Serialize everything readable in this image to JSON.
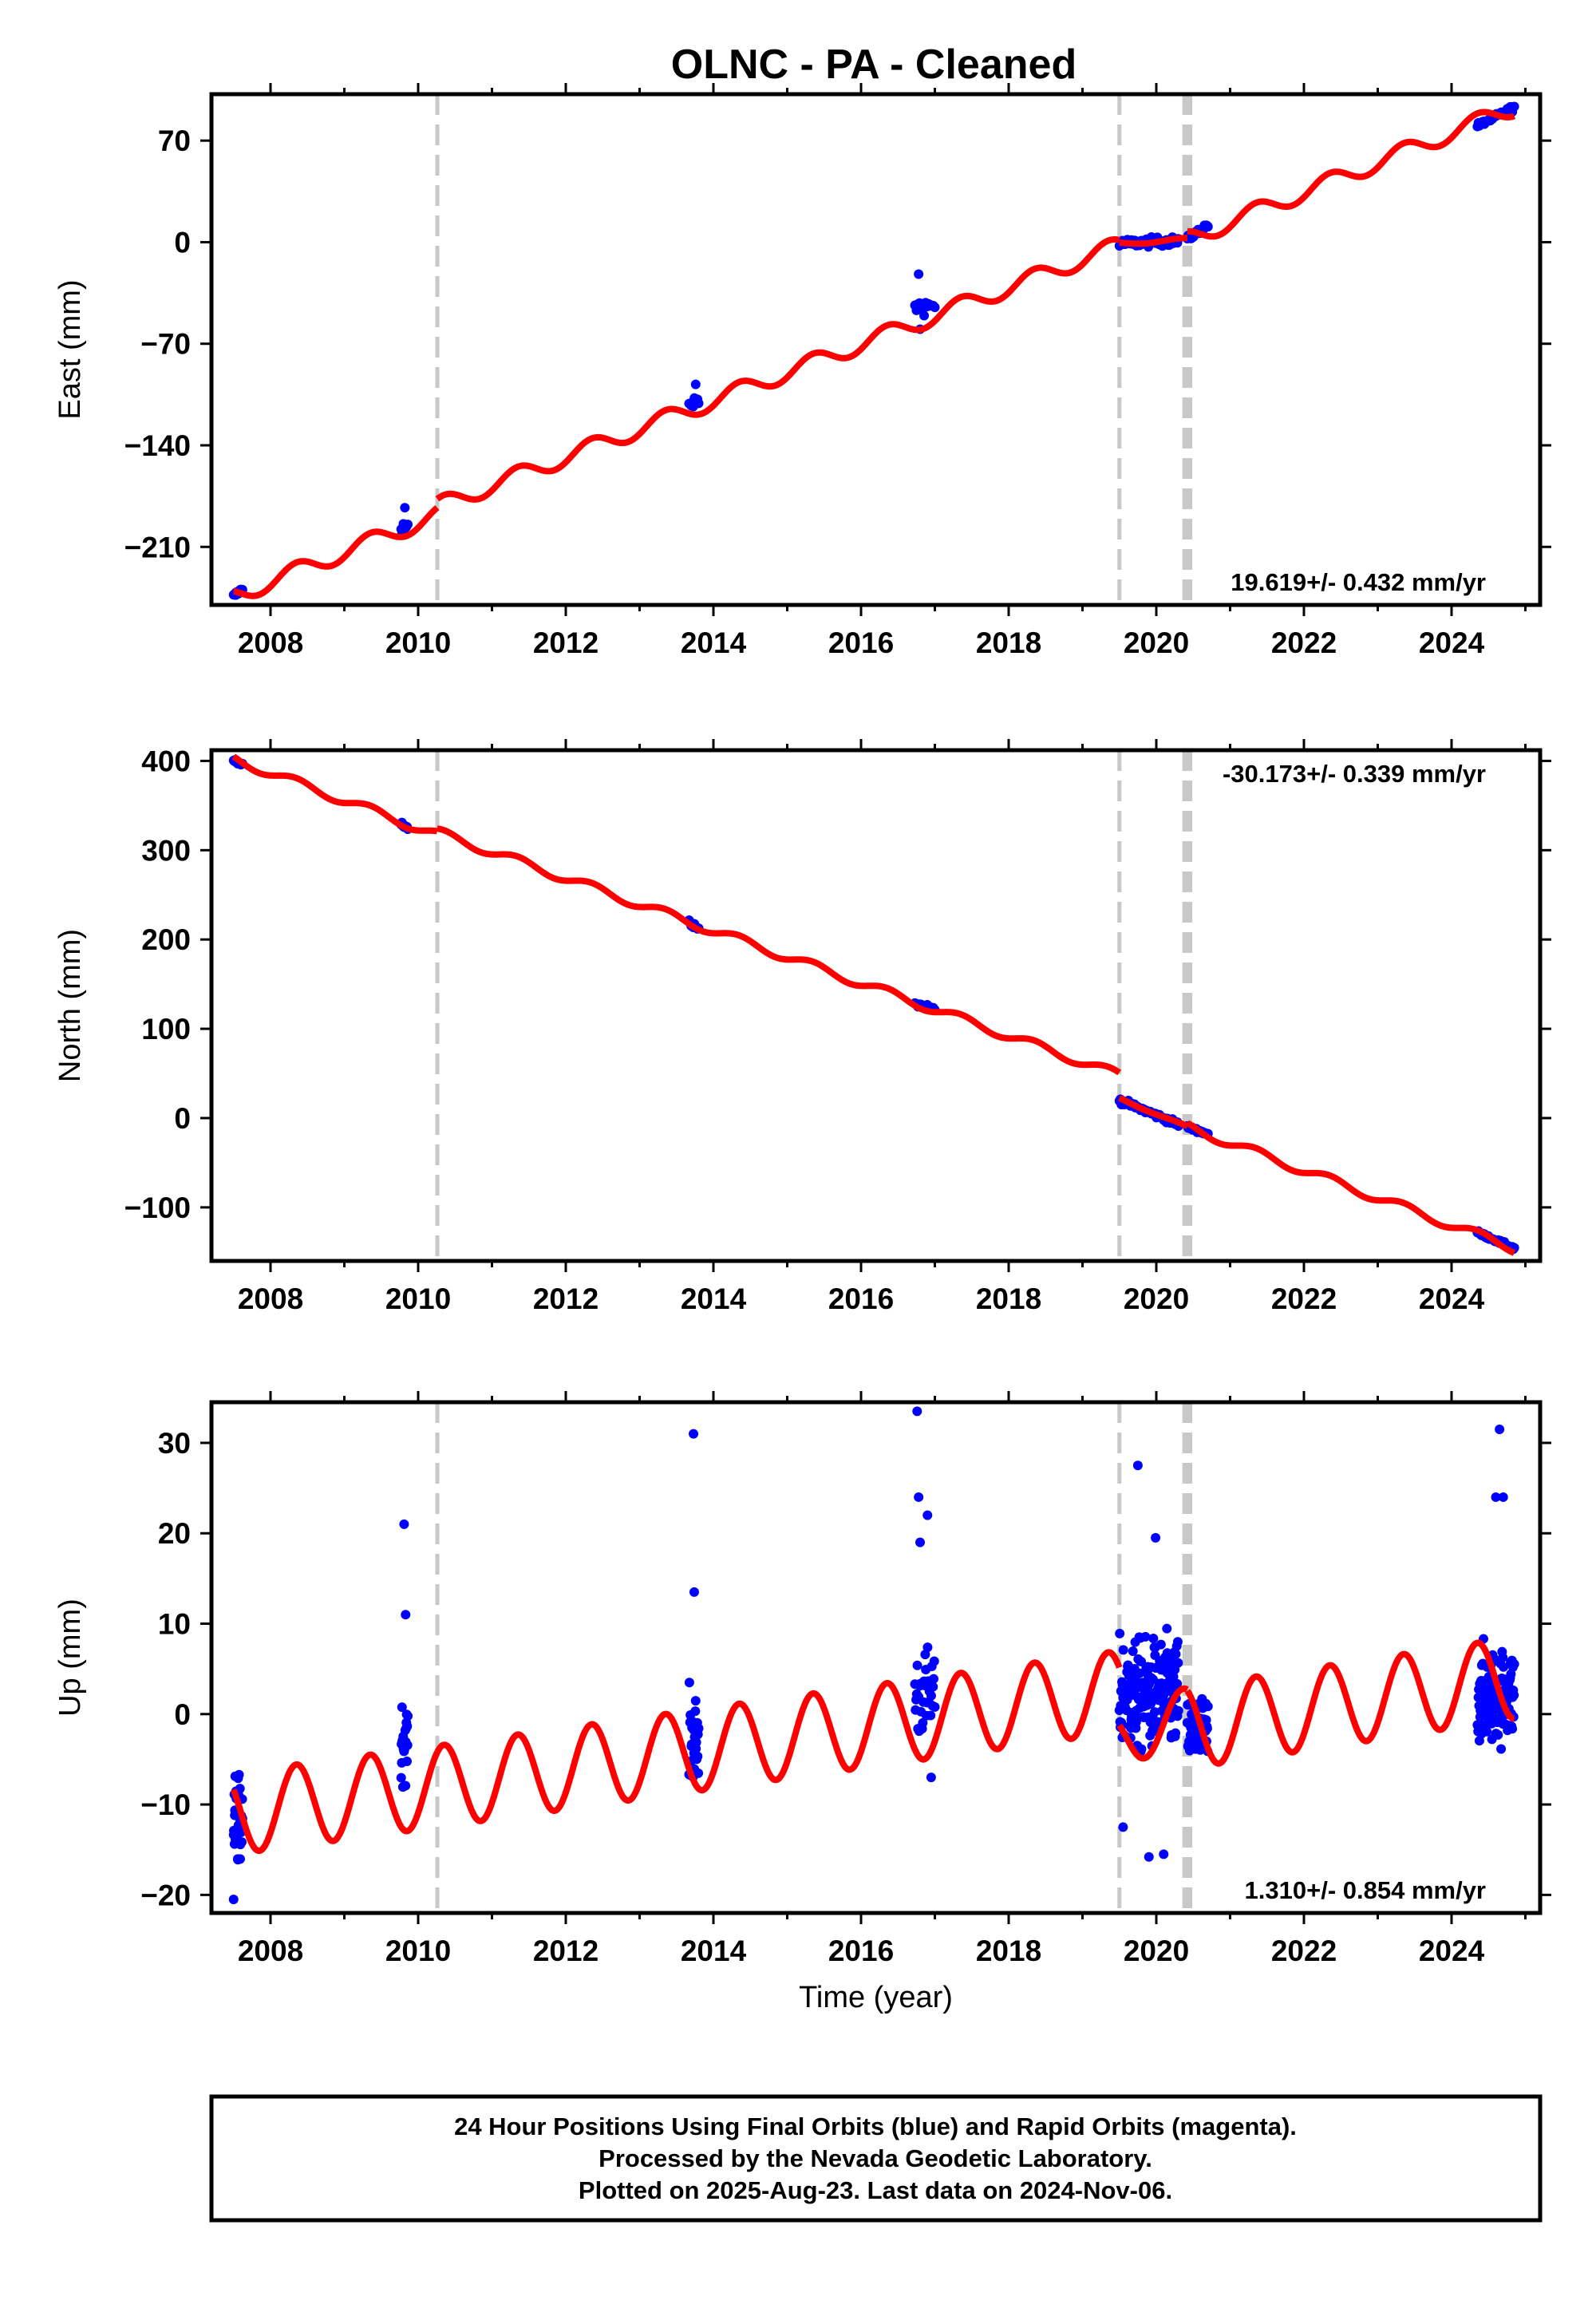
{
  "title": "OLNC  - PA - Cleaned",
  "colors": {
    "data": "#0000ff",
    "model": "#ff0000",
    "break": "#c8c8c8",
    "frame": "#000000"
  },
  "chart_data": [
    {
      "type": "scatter",
      "panel": "east",
      "ylabel": "East (mm)",
      "xlim": [
        2007.2,
        2025.2
      ],
      "ylim": [
        -250,
        102
      ],
      "xticks": [
        "2008",
        "2010",
        "2012",
        "2014",
        "2016",
        "2018",
        "2020",
        "2022",
        "2024"
      ],
      "yticks": [
        "70",
        "0",
        "−70",
        "−140",
        "−210"
      ],
      "yticks_values": [
        70,
        0,
        -70,
        -140,
        -210
      ],
      "rate": "19.619+/- 0.432 mm/yr",
      "rate_position": "bottom-right",
      "break_lines": [
        2010.26,
        2019.5,
        2020.38,
        2020.42,
        2020.46
      ],
      "series": [
        {
          "kind": "data",
          "clusters": [
            {
              "x": [
                2007.5,
                2007.62
              ],
              "center": [
                -244,
                -239
              ],
              "spread": 2,
              "n": 14
            },
            {
              "x": [
                2009.77,
                2009.86
              ],
              "center": [
                -197,
                -197
              ],
              "spread": 5,
              "n": 10
            },
            {
              "x": [
                2013.67,
                2013.8
              ],
              "center": [
                -112,
                -110
              ],
              "spread": 3,
              "n": 10
            },
            {
              "x": [
                2016.73,
                2017.0
              ],
              "center": [
                -44,
                -44
              ],
              "spread": 5,
              "n": 14
            },
            {
              "x": [
                2019.5,
                2020.3
              ],
              "center": [
                -1,
                1
              ],
              "spread": 3,
              "n": 60
            },
            {
              "x": [
                2020.42,
                2020.7
              ],
              "center": [
                2,
                12
              ],
              "spread": 2,
              "n": 24
            },
            {
              "x": [
                2024.35,
                2024.85
              ],
              "center": [
                80,
                93
              ],
              "spread": 2,
              "n": 38
            }
          ],
          "outliers": [
            {
              "x": 2009.82,
              "y": -183
            },
            {
              "x": 2013.76,
              "y": -98
            },
            {
              "x": 2016.78,
              "y": -22
            },
            {
              "x": 2016.8,
              "y": -60
            }
          ]
        },
        {
          "kind": "model",
          "segments": [
            {
              "x": [
                2007.5,
                2010.26
              ],
              "y0": -244,
              "y1": -188,
              "amp": 6
            },
            {
              "x": [
                2010.26,
                2019.5
              ],
              "y0": -182,
              "y1": -2,
              "amp": 6
            },
            {
              "x": [
                2019.5,
                2020.42
              ],
              "y0": -1,
              "y1": 2,
              "amp": 1
            },
            {
              "x": [
                2020.42,
                2024.85
              ],
              "y0": 2,
              "y1": 93,
              "amp": 6
            }
          ]
        }
      ]
    },
    {
      "type": "scatter",
      "panel": "north",
      "ylabel": "North (mm)",
      "xlim": [
        2007.2,
        2025.2
      ],
      "ylim": [
        -160,
        412
      ],
      "xticks": [
        "2008",
        "2010",
        "2012",
        "2014",
        "2016",
        "2018",
        "2020",
        "2022",
        "2024"
      ],
      "yticks": [
        "400",
        "300",
        "200",
        "100",
        "0",
        "−100"
      ],
      "yticks_values": [
        400,
        300,
        200,
        100,
        0,
        -100
      ],
      "rate": "-30.173+/- 0.339 mm/yr",
      "rate_position": "top-right",
      "break_lines": [
        2010.26,
        2019.5,
        2020.38,
        2020.42,
        2020.46
      ],
      "series": [
        {
          "kind": "data",
          "clusters": [
            {
              "x": [
                2007.5,
                2007.62
              ],
              "center": [
                400,
                397
              ],
              "spread": 2,
              "n": 12
            },
            {
              "x": [
                2009.77,
                2009.86
              ],
              "center": [
                330,
                325
              ],
              "spread": 3,
              "n": 10
            },
            {
              "x": [
                2013.67,
                2013.8
              ],
              "center": [
                220,
                213
              ],
              "spread": 3,
              "n": 10
            },
            {
              "x": [
                2016.73,
                2017.0
              ],
              "center": [
                128,
                122
              ],
              "spread": 3,
              "n": 14
            },
            {
              "x": [
                2019.5,
                2020.3
              ],
              "center": [
                20,
                -7
              ],
              "spread": 3,
              "n": 60
            },
            {
              "x": [
                2020.42,
                2020.7
              ],
              "center": [
                -10,
                -18
              ],
              "spread": 2,
              "n": 24
            },
            {
              "x": [
                2024.35,
                2024.85
              ],
              "center": [
                -128,
                -146
              ],
              "spread": 2,
              "n": 38
            }
          ],
          "outliers": []
        },
        {
          "kind": "model",
          "segments": [
            {
              "x": [
                2007.5,
                2010.26
              ],
              "y0": 402,
              "y1": 317,
              "amp": 5
            },
            {
              "x": [
                2010.26,
                2019.5
              ],
              "y0": 320,
              "y1": 48,
              "amp": 5
            },
            {
              "x": [
                2019.5,
                2020.42
              ],
              "y0": 22,
              "y1": -10,
              "amp": 1
            },
            {
              "x": [
                2020.42,
                2024.85
              ],
              "y0": -10,
              "y1": -146,
              "amp": 5
            }
          ]
        }
      ]
    },
    {
      "type": "scatter",
      "panel": "up",
      "ylabel": "Up (mm)",
      "xlabel": "Time (year)",
      "xlim": [
        2007.2,
        2025.2
      ],
      "ylim": [
        -22,
        34.5
      ],
      "xticks": [
        "2008",
        "2010",
        "2012",
        "2014",
        "2016",
        "2018",
        "2020",
        "2022",
        "2024"
      ],
      "yticks": [
        "30",
        "20",
        "10",
        "0",
        "−10",
        "−20"
      ],
      "yticks_values": [
        30,
        20,
        10,
        0,
        -10,
        -20
      ],
      "rate": "1.310+/- 0.854 mm/yr",
      "rate_position": "bottom-right",
      "break_lines": [
        2010.26,
        2019.5,
        2020.38,
        2020.42,
        2020.46
      ],
      "series": [
        {
          "kind": "data",
          "clusters": [
            {
              "x": [
                2007.5,
                2007.62
              ],
              "center": [
                -12,
                -12
              ],
              "spread": 5,
              "n": 40
            },
            {
              "x": [
                2009.77,
                2009.86
              ],
              "center": [
                -3,
                -3
              ],
              "spread": 4,
              "n": 24
            },
            {
              "x": [
                2013.67,
                2013.8
              ],
              "center": [
                -3,
                -3
              ],
              "spread": 5,
              "n": 30
            },
            {
              "x": [
                2016.73,
                2017.0
              ],
              "center": [
                2,
                2
              ],
              "spread": 5,
              "n": 34
            },
            {
              "x": [
                2019.5,
                2020.3
              ],
              "center": [
                2,
                2
              ],
              "spread": 6,
              "n": 180
            },
            {
              "x": [
                2020.42,
                2020.7
              ],
              "center": [
                -2,
                -2
              ],
              "spread": 4,
              "n": 60
            },
            {
              "x": [
                2024.35,
                2024.85
              ],
              "center": [
                2,
                2
              ],
              "spread": 5,
              "n": 110
            }
          ],
          "outliers": [
            {
              "x": 2007.5,
              "y": -20.5
            },
            {
              "x": 2009.81,
              "y": 21
            },
            {
              "x": 2009.83,
              "y": 11
            },
            {
              "x": 2013.73,
              "y": 31
            },
            {
              "x": 2013.74,
              "y": 13.5
            },
            {
              "x": 2016.76,
              "y": 33.5
            },
            {
              "x": 2016.78,
              "y": 24
            },
            {
              "x": 2016.8,
              "y": 19
            },
            {
              "x": 2016.9,
              "y": 22
            },
            {
              "x": 2016.95,
              "y": -7
            },
            {
              "x": 2019.75,
              "y": 27.5
            },
            {
              "x": 2019.99,
              "y": 19.5
            },
            {
              "x": 2019.9,
              "y": -15.8
            },
            {
              "x": 2020.1,
              "y": -15.5
            },
            {
              "x": 2019.55,
              "y": -12.5
            },
            {
              "x": 2024.65,
              "y": 31.5
            },
            {
              "x": 2024.6,
              "y": 24
            },
            {
              "x": 2024.7,
              "y": 24
            }
          ]
        },
        {
          "kind": "model",
          "segments": [
            {
              "x": [
                2007.5,
                2010.26
              ],
              "y0": -11,
              "y1": -8,
              "amp": 4.5
            },
            {
              "x": [
                2010.26,
                2019.5
              ],
              "y0": -8,
              "y1": 2.5,
              "amp": 4.5
            },
            {
              "x": [
                2019.5,
                2020.42
              ],
              "y0": -3,
              "y1": 0,
              "amp": 3
            },
            {
              "x": [
                2020.42,
                2024.85
              ],
              "y0": -1.5,
              "y1": 4,
              "amp": 4.5
            }
          ]
        }
      ]
    }
  ],
  "footer": {
    "line1": "24 Hour Positions Using Final Orbits (blue) and Rapid Orbits (magenta).",
    "line2": "Processed by the Nevada Geodetic Laboratory.",
    "line3": "Plotted on 2025-Aug-23. Last data on 2024-Nov-06."
  }
}
